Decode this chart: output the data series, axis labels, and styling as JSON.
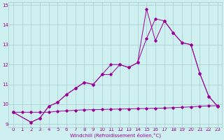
{
  "xlabel": "Windchill (Refroidissement éolien,°C)",
  "bg_color": "#cff0f0",
  "line_color": "#990099",
  "grid_color": "#aacccc",
  "xlim": [
    -0.5,
    23.5
  ],
  "ylim": [
    8.85,
    15.15
  ],
  "xticks": [
    0,
    1,
    2,
    3,
    4,
    5,
    6,
    7,
    8,
    9,
    10,
    11,
    12,
    13,
    14,
    15,
    16,
    17,
    18,
    19,
    20,
    21,
    22,
    23
  ],
  "yticks": [
    9,
    10,
    11,
    12,
    13,
    14,
    15
  ],
  "line1_x": [
    0,
    1,
    2,
    3,
    4,
    5,
    6,
    7,
    8,
    9,
    10,
    11,
    12,
    13,
    14,
    15,
    16,
    17,
    18,
    19,
    20,
    21,
    22,
    23
  ],
  "line1_y": [
    9.6,
    9.6,
    9.6,
    9.6,
    9.6,
    9.65,
    9.67,
    9.7,
    9.72,
    9.73,
    9.74,
    9.75,
    9.76,
    9.77,
    9.78,
    9.79,
    9.8,
    9.81,
    9.83,
    9.85,
    9.87,
    9.9,
    9.92,
    9.93
  ],
  "line2_x": [
    0,
    2,
    3,
    4,
    5,
    6,
    7,
    8,
    9,
    10,
    11,
    12,
    13,
    14,
    15,
    16,
    17,
    18,
    19,
    20,
    21,
    22,
    23
  ],
  "line2_y": [
    9.6,
    9.1,
    9.3,
    9.9,
    10.1,
    10.5,
    10.8,
    11.1,
    11.0,
    11.5,
    11.5,
    12.0,
    11.85,
    12.1,
    14.8,
    13.2,
    14.2,
    13.6,
    13.1,
    13.0,
    11.55,
    10.4,
    9.9
  ],
  "line3_x": [
    0,
    2,
    3,
    4,
    5,
    6,
    7,
    8,
    9,
    10,
    11,
    12,
    13,
    14,
    15,
    16,
    17,
    18,
    19,
    20,
    21,
    22,
    23
  ],
  "line3_y": [
    9.6,
    9.1,
    9.3,
    9.9,
    10.1,
    10.5,
    10.8,
    11.1,
    11.0,
    11.5,
    12.0,
    12.0,
    11.85,
    12.1,
    13.3,
    14.3,
    14.2,
    13.6,
    13.1,
    13.0,
    11.55,
    10.4,
    9.9
  ]
}
